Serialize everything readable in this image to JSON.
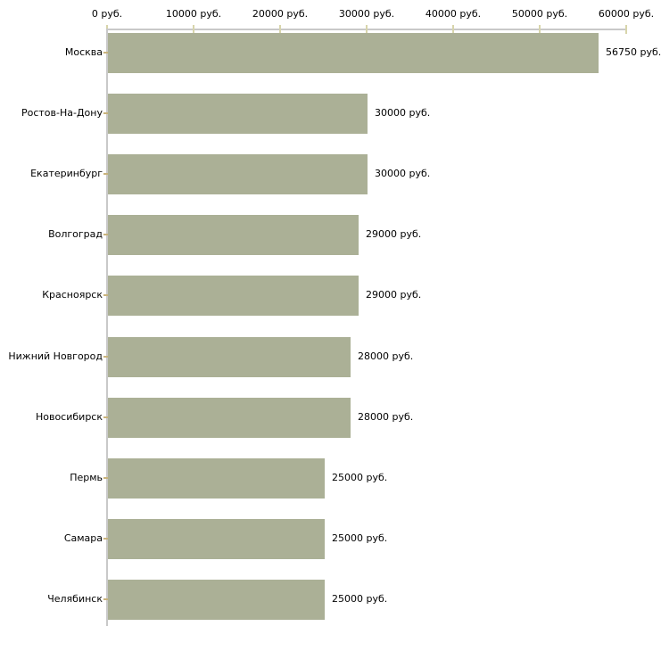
{
  "chart_data": {
    "type": "bar",
    "orientation": "horizontal",
    "axis_position": "top",
    "grid": false,
    "xlim": [
      0,
      60000
    ],
    "categories": [
      "Москва",
      "Ростов-На-Дону",
      "Екатеринбург",
      "Волгоград",
      "Красноярск",
      "Нижний Новгород",
      "Новосибирск",
      "Пермь",
      "Самара",
      "Челябинск"
    ],
    "values": [
      56750,
      30000,
      30000,
      29000,
      29000,
      28000,
      28000,
      25000,
      25000,
      25000
    ],
    "value_labels": [
      "56750 руб.",
      "30000 руб.",
      "30000 руб.",
      "29000 руб.",
      "29000 руб.",
      "28000 руб.",
      "28000 руб.",
      "25000 руб.",
      "25000 руб.",
      "25000 руб."
    ],
    "x_ticks": [
      0,
      10000,
      20000,
      30000,
      40000,
      50000,
      60000
    ],
    "x_tick_labels": [
      "0 руб.",
      "10000 руб.",
      "20000 руб.",
      "30000 руб.",
      "40000 руб.",
      "50000 руб.",
      "60000 руб."
    ],
    "colors": {
      "bar": "#abb096",
      "axis_line": "#c9c9c9",
      "x_tick_mark": "#d8d5ab",
      "y_tick_mark": "#c9b37b",
      "label_text": "#000000"
    }
  }
}
